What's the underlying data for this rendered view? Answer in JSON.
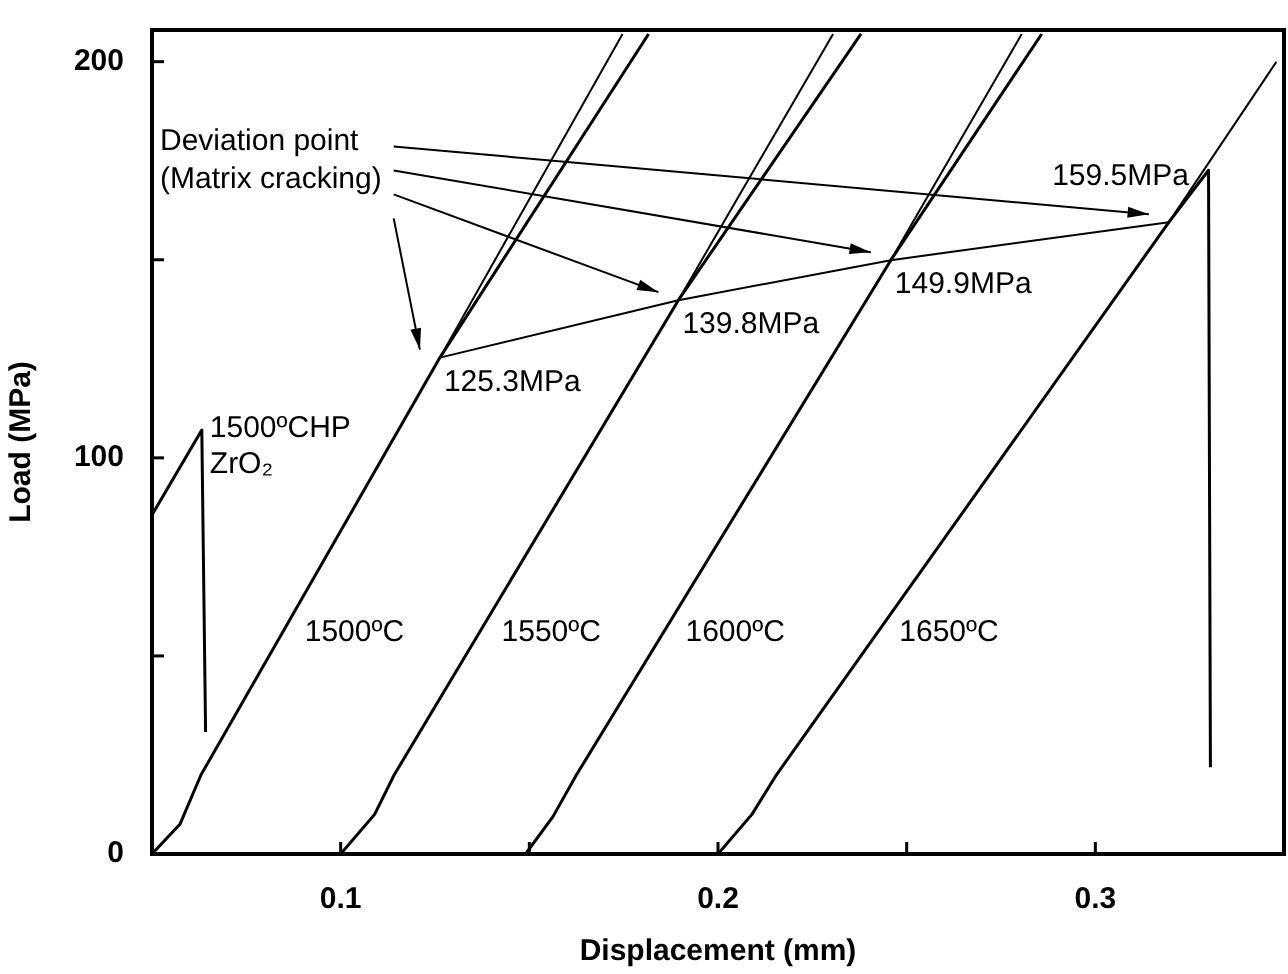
{
  "chart_data": {
    "type": "line",
    "xlabel": "Displacement (mm)",
    "ylabel": "Load (MPa)",
    "xlim": [
      0.05,
      0.35
    ],
    "ylim": [
      0,
      208
    ],
    "xticks": [
      0.1,
      {
        "value": 0.15,
        "label": null
      },
      0.2,
      {
        "value": 0.25,
        "label": null
      },
      0.3
    ],
    "yticks": [
      0,
      {
        "value": 50,
        "label": null
      },
      100,
      {
        "value": 150,
        "label": null
      },
      200
    ],
    "series": [
      {
        "name": "1500ºC",
        "color": "#000000",
        "x": [
          0.05,
          0.0574,
          0.063,
          0.1263,
          0.1816
        ],
        "values": [
          0,
          7.5,
          20,
          125.3,
          207
        ]
      },
      {
        "color": "#000000",
        "x": [
          0.1263,
          0.1747
        ],
        "values": [
          125.3,
          207
        ]
      },
      {
        "name": "1550ºC",
        "color": "#000000",
        "x": [
          0.1,
          0.109,
          0.1142,
          0.1895,
          0.2379
        ],
        "values": [
          0,
          10,
          20,
          139.8,
          207
        ]
      },
      {
        "color": "#000000",
        "x": [
          0.1895,
          0.2305
        ],
        "values": [
          139.8,
          207
        ]
      },
      {
        "name": "1600ºC",
        "color": "#000000",
        "x": [
          0.149,
          0.1563,
          0.1625,
          0.2458,
          0.2858
        ],
        "values": [
          0,
          9.5,
          20,
          149.9,
          207
        ]
      },
      {
        "color": "#000000",
        "x": [
          0.2458,
          0.2805
        ],
        "values": [
          149.9,
          207
        ]
      },
      {
        "name": "1650ºC",
        "color": "#000000",
        "x": [
          0.2,
          0.209,
          0.2155,
          0.3195,
          0.33,
          0.3305
        ],
        "values": [
          0,
          10,
          20,
          159.5,
          172.6,
          21.9
        ]
      },
      {
        "color": "#000000",
        "x": [
          0.3195,
          0.348
        ],
        "values": [
          159.5,
          200
        ]
      },
      {
        "name": "1500ºCHP ZrO₂",
        "color": "#000000",
        "x": [
          0.05,
          0.0632,
          0.0642
        ],
        "values": [
          85.6,
          107,
          30.8
        ]
      },
      {
        "color": "#000000",
        "x": [
          0.1263,
          0.1895,
          0.2458,
          0.3195
        ],
        "values": [
          125.3,
          139.8,
          149.9,
          159.5
        ]
      }
    ],
    "annotations": [
      "Deviation point (Matrix cracking)",
      {
        "text": "125.3MPa",
        "x": 0.1263,
        "y": 125.3
      },
      {
        "text": "139.8MPa",
        "x": 0.1895,
        "y": 139.8
      },
      {
        "text": "149.9MPa",
        "x": 0.2458,
        "y": 149.9
      },
      {
        "text": "159.5MPa",
        "x": 0.3195,
        "y": 159.5
      }
    ]
  }
}
